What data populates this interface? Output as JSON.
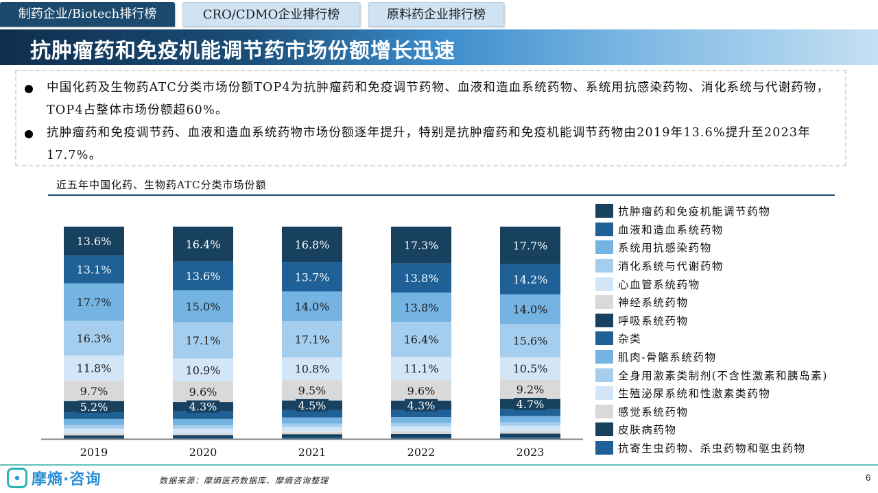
{
  "tabs": [
    {
      "label": "制药企业/Biotech排行榜",
      "active": true
    },
    {
      "label": "CRO/CDMO企业排行榜",
      "active": false
    },
    {
      "label": "原料药企业排行榜",
      "active": false
    }
  ],
  "header": {
    "title": "抗肿瘤药和免疫机能调节药市场份额增长迅速"
  },
  "summary": {
    "bullets": [
      "中国化药及生物药ATC分类市场份额TOP4为抗肿瘤药和免疫调节药物、血液和造血系统药物、系统用抗感染药物、消化系统与代谢药物，TOP4占整体市场份额超60%。",
      "抗肿瘤药和免疫调节药、血液和造血系统药物市场份额逐年提升，特别是抗肿瘤药和免疫机能调节药物由2019年13.6%提升至2023年17.7%。"
    ]
  },
  "chart_data": {
    "type": "bar",
    "stacked": true,
    "title": "近五年中国化药、生物药ATC分类市场份额",
    "xlabel": "",
    "ylabel": "",
    "ylim": [
      0,
      100
    ],
    "unit": "%",
    "grid": false,
    "legend_position": "right",
    "categories": [
      "2019",
      "2020",
      "2021",
      "2022",
      "2023"
    ],
    "series": [
      {
        "name": "抗肿瘤药和免疫机能调节药物",
        "color": "#17415f",
        "values": [
          13.6,
          16.4,
          16.8,
          17.3,
          17.7
        ],
        "labeled": true
      },
      {
        "name": "血液和造血系统药物",
        "color": "#1f6196",
        "values": [
          13.1,
          13.6,
          13.7,
          13.8,
          14.2
        ],
        "labeled": true
      },
      {
        "name": "系统用抗感染药物",
        "color": "#75b3e2",
        "values": [
          17.7,
          15.0,
          14.0,
          13.8,
          14.0
        ],
        "labeled": true
      },
      {
        "name": "消化系统与代谢药物",
        "color": "#a4cdee",
        "values": [
          16.3,
          17.1,
          17.1,
          16.4,
          15.6
        ],
        "labeled": true
      },
      {
        "name": "心血管系统药物",
        "color": "#d2e6f7",
        "values": [
          11.8,
          10.9,
          10.8,
          11.1,
          10.5
        ],
        "labeled": true
      },
      {
        "name": "神经系统药物",
        "color": "#d9d9d9",
        "values": [
          9.7,
          9.6,
          9.5,
          9.6,
          9.2
        ],
        "labeled": true
      },
      {
        "name": "呼吸系统药物",
        "color": "#17415f",
        "values": [
          5.2,
          4.3,
          4.5,
          4.3,
          4.7
        ],
        "labeled": true
      },
      {
        "name": "杂类",
        "color": "#1f6196",
        "values": [
          3.2,
          3.7,
          3.5,
          3.4,
          3.3
        ],
        "labeled": false
      },
      {
        "name": "肌肉-骨骼系统药物",
        "color": "#75b3e2",
        "values": [
          2.9,
          3.0,
          2.9,
          2.8,
          2.9
        ],
        "labeled": false
      },
      {
        "name": "全身用激素类制剂(不含性激素和胰岛素)",
        "color": "#a4cdee",
        "values": [
          1.6,
          1.5,
          1.6,
          1.6,
          1.7
        ],
        "labeled": false
      },
      {
        "name": "生殖泌尿系统和性激素类药物",
        "color": "#d2e6f7",
        "values": [
          2.2,
          2.1,
          2.3,
          2.4,
          2.5
        ],
        "labeled": false
      },
      {
        "name": "感觉系统药物",
        "color": "#d9d9d9",
        "values": [
          1.0,
          1.0,
          1.1,
          1.2,
          1.2
        ],
        "labeled": false
      },
      {
        "name": "皮肤病药物",
        "color": "#17415f",
        "values": [
          1.3,
          1.3,
          1.4,
          1.5,
          1.6
        ],
        "labeled": false
      },
      {
        "name": "抗寄生虫药物、杀虫药物和驱虫药物",
        "color": "#1f6196",
        "values": [
          0.4,
          0.5,
          0.8,
          0.8,
          0.9
        ],
        "labeled": false
      }
    ]
  },
  "footer": {
    "brand": "摩熵·咨询",
    "source": "数据来源：摩熵医药数据库、摩熵咨询整理",
    "page": "6"
  }
}
